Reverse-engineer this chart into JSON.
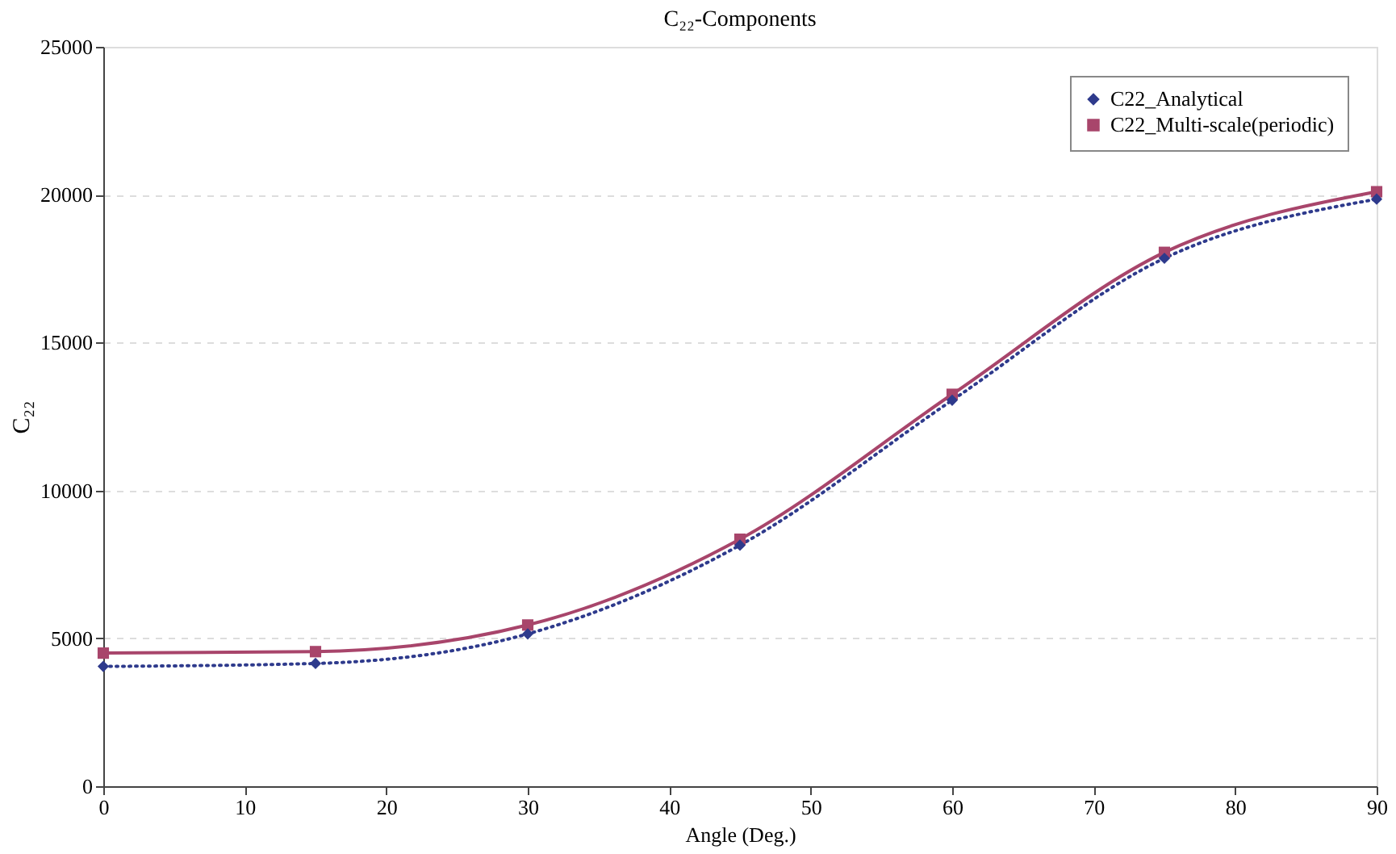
{
  "chart_data": {
    "type": "line",
    "title": "C₂₂-Components",
    "xlabel": "Angle (Deg.)",
    "ylabel": "C₂₂",
    "x": [
      0,
      15,
      30,
      45,
      60,
      75,
      90
    ],
    "series": [
      {
        "name": "C22_Analytical",
        "color": "#2e3a8c",
        "marker": "diamond",
        "line_style": "dotted",
        "values": [
          4050,
          4150,
          5150,
          8150,
          13050,
          17850,
          19850
        ]
      },
      {
        "name": "C22_Multi-scale(periodic)",
        "color": "#a8456b",
        "marker": "square",
        "line_style": "solid",
        "values": [
          4500,
          4550,
          5450,
          8350,
          13250,
          18050,
          20100
        ]
      }
    ],
    "xlim": [
      0,
      90
    ],
    "xticks": [
      0,
      10,
      20,
      30,
      40,
      50,
      60,
      70,
      80,
      90
    ],
    "ylim": [
      0,
      25000
    ],
    "yticks": [
      0,
      5000,
      10000,
      15000,
      20000,
      25000
    ],
    "grid": "y",
    "legend": "top right"
  }
}
